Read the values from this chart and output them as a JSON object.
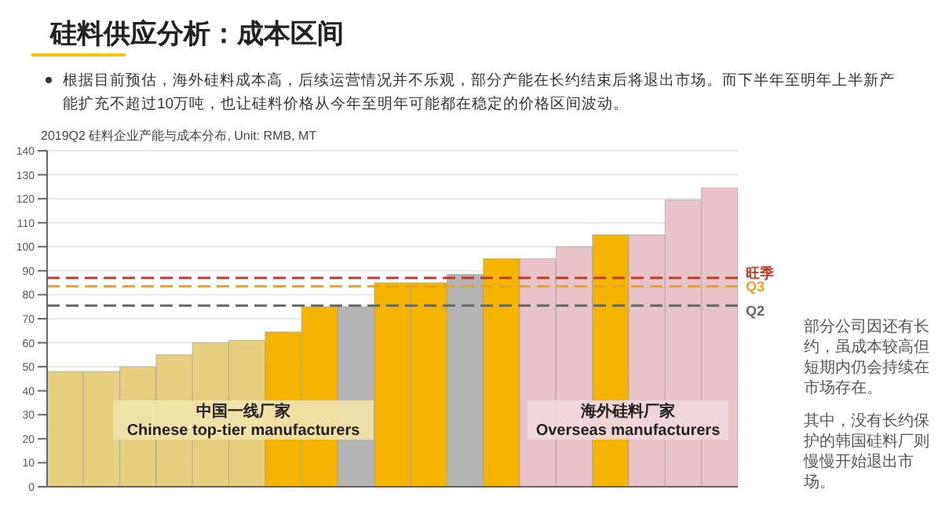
{
  "chart_data": {
    "type": "bar",
    "title": "硅料供应分析：成本区间",
    "subtitle": "根据目前预估，海外硅料成本高，后续运营情况并不乐观，部分产能在长约结束后将退出市场。而下半年至明年上半新产能扩充不超过10万吨，也让硅料价格从今年至明年可能都在稳定的价格区间波动。",
    "categories": [
      null,
      null,
      null,
      null,
      null,
      null,
      null,
      null,
      null,
      null,
      null,
      null,
      null,
      null,
      null,
      null,
      null,
      null,
      null
    ],
    "values": [
      48,
      48,
      50,
      55,
      60,
      61,
      64.5,
      75,
      75,
      85,
      85,
      88.5,
      95,
      95,
      100,
      105,
      105,
      119.5,
      124.5
    ],
    "colors": [
      "#e6cf7e",
      "#e6cf7e",
      "#e6cf7e",
      "#e6cf7e",
      "#e6cf7e",
      "#e6cf7e",
      "#f4b400",
      "#f4b400",
      "#b4b4b4",
      "#f4b400",
      "#f4b400",
      "#b4b4b4",
      "#f4b400",
      "#e8c3c9",
      "#e8c3c9",
      "#f4b400",
      "#e8c3c9",
      "#e8c3c9",
      "#e8c3c9"
    ],
    "ylim": [
      0,
      140
    ],
    "yticks": [
      0,
      10,
      20,
      30,
      40,
      50,
      60,
      70,
      80,
      90,
      100,
      110,
      120,
      130,
      140
    ],
    "grid": "y",
    "tick_labels": "y",
    "ref_lines": [
      {
        "axis": "y",
        "value": 87,
        "label": "旺季",
        "color": "#c0392b",
        "line_style": "dashed"
      },
      {
        "axis": "y",
        "value": 83.5,
        "label": "Q3",
        "color": "#e8a020",
        "line_style": "dashed"
      },
      {
        "axis": "y",
        "value": 75.5,
        "label": "Q2",
        "color": "#666666",
        "line_style": "dashed"
      }
    ],
    "annotations": [
      "2019Q2 硅料企业产能与成本分布, Unit: RMB, MT",
      "中国一线厂家\nChinese top-tier manufacturers",
      "海外硅料厂家\nOverseas manufacturers",
      "部分公司因还有长约，虽成本较高但短期内仍会持续在市场存在。",
      "其中，没有长约保护的韩国硅料厂则慢慢开始退出市场。"
    ]
  }
}
